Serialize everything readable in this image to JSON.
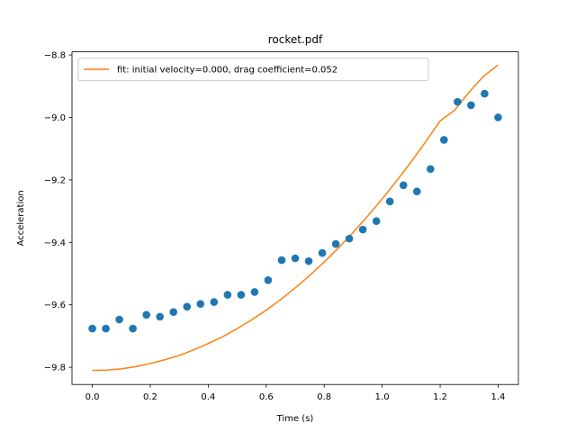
{
  "chart_data": {
    "type": "scatter",
    "title": "rocket.pdf",
    "xlabel": "Time (s)",
    "ylabel": "Acceleration",
    "xlim": [
      -0.07,
      1.47
    ],
    "ylim": [
      -9.855,
      -8.79
    ],
    "x_ticks": [
      0.0,
      0.2,
      0.4,
      0.6,
      0.8,
      1.0,
      1.2,
      1.4
    ],
    "x_tick_labels": [
      "0.0",
      "0.2",
      "0.4",
      "0.6",
      "0.8",
      "1.0",
      "1.2",
      "1.4"
    ],
    "y_ticks": [
      -9.8,
      -9.6,
      -9.4,
      -9.2,
      -9.0,
      -8.8
    ],
    "y_tick_labels": [
      "−9.8",
      "−9.6",
      "−9.4",
      "−9.2",
      "−9.0",
      "−8.8"
    ],
    "grid": false,
    "legend_position": "upper-left",
    "series": [
      {
        "kind": "scatter",
        "color": "#1f77b4",
        "x": [
          0.0,
          0.0467,
          0.0933,
          0.14,
          0.1867,
          0.2333,
          0.28,
          0.3267,
          0.3733,
          0.42,
          0.4667,
          0.5133,
          0.56,
          0.6067,
          0.6533,
          0.7,
          0.7467,
          0.7933,
          0.84,
          0.8867,
          0.9333,
          0.98,
          1.0267,
          1.0733,
          1.12,
          1.1667,
          1.2133,
          1.26,
          1.3067,
          1.3533,
          1.4
        ],
        "y": [
          -9.676,
          -9.676,
          -9.647,
          -9.676,
          -9.632,
          -9.638,
          -9.623,
          -9.606,
          -9.597,
          -9.591,
          -9.568,
          -9.568,
          -9.559,
          -9.521,
          -9.457,
          -9.451,
          -9.46,
          -9.434,
          -9.405,
          -9.388,
          -9.359,
          -9.332,
          -9.269,
          -9.217,
          -9.237,
          -9.165,
          -9.072,
          -8.95,
          -8.961,
          -8.924,
          -9.0
        ]
      },
      {
        "kind": "line",
        "name": "fit: initial velocity=0.000, drag coefficient=0.052",
        "color": "#ff7f0e",
        "x": [
          0.0,
          0.05,
          0.1,
          0.15,
          0.2,
          0.25,
          0.3,
          0.35,
          0.4,
          0.45,
          0.5,
          0.55,
          0.6,
          0.65,
          0.7,
          0.75,
          0.8,
          0.85,
          0.9,
          0.95,
          1.0,
          1.05,
          1.1,
          1.15,
          1.2,
          1.25,
          1.3,
          1.35,
          1.4
        ],
        "y": [
          -9.81,
          -9.809,
          -9.805,
          -9.798,
          -9.788,
          -9.776,
          -9.762,
          -9.744,
          -9.724,
          -9.702,
          -9.676,
          -9.648,
          -9.617,
          -9.583,
          -9.546,
          -9.506,
          -9.463,
          -9.417,
          -9.368,
          -9.316,
          -9.261,
          -9.203,
          -9.142,
          -9.078,
          -9.011,
          -8.977,
          -8.919,
          -8.868,
          -8.832
        ]
      }
    ]
  }
}
